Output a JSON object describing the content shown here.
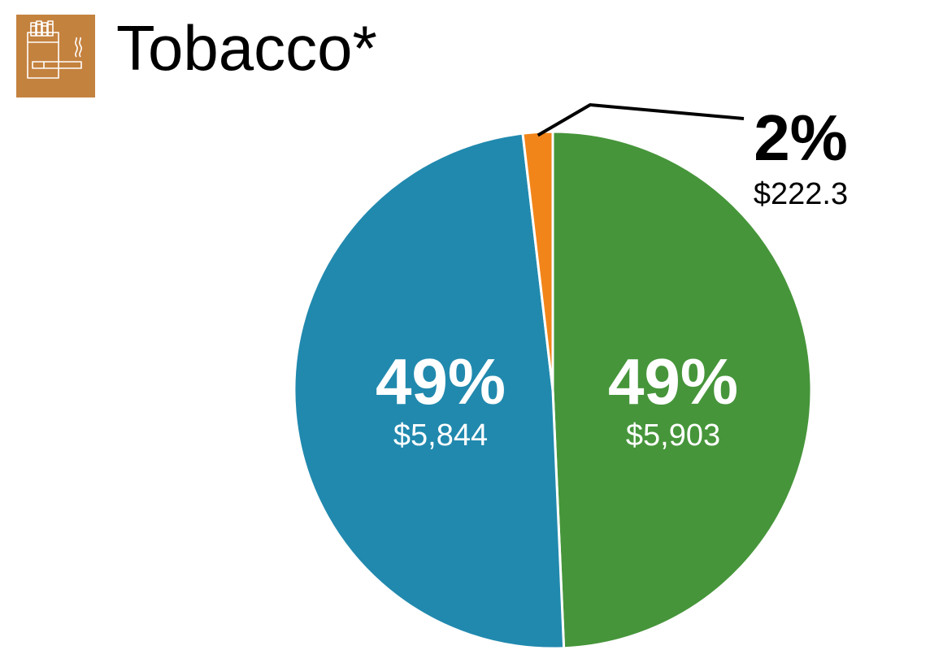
{
  "header": {
    "title": "Tobacco*",
    "icon": "tobacco-icon"
  },
  "colors": {
    "icon_bg": "#c4823f",
    "icon_stroke": "#ffffff"
  },
  "chart_data": {
    "type": "pie",
    "title": "Tobacco*",
    "start_angle_deg": 0,
    "direction": "clockwise",
    "slices": [
      {
        "percent_label": "49%",
        "value_label": "$5,903",
        "value": 5903,
        "color": "#46953a"
      },
      {
        "percent_label": "49%",
        "value_label": "$5,844",
        "value": 5844,
        "color": "#2189ae"
      },
      {
        "percent_label": "2%",
        "value_label": "$222.3",
        "value": 222.3,
        "color": "#f28519"
      }
    ]
  }
}
